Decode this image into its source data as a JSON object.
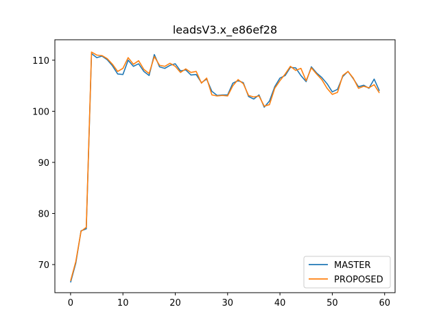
{
  "chart_data": {
    "type": "line",
    "title": "leadsV3.x_e86ef28",
    "xlabel": "",
    "ylabel": "",
    "xlim": [
      -3,
      62
    ],
    "ylim": [
      64.5,
      114.0
    ],
    "xticks": [
      0,
      10,
      20,
      30,
      40,
      50,
      60
    ],
    "yticks": [
      70,
      80,
      90,
      100,
      110
    ],
    "grid": false,
    "legend_position": "lower-right",
    "x": [
      0,
      1,
      2,
      3,
      4,
      5,
      6,
      7,
      8,
      9,
      10,
      11,
      12,
      13,
      14,
      15,
      16,
      17,
      18,
      19,
      20,
      21,
      22,
      23,
      24,
      25,
      26,
      27,
      28,
      29,
      30,
      31,
      32,
      33,
      34,
      35,
      36,
      37,
      38,
      39,
      40,
      41,
      42,
      43,
      44,
      45,
      46,
      47,
      48,
      49,
      50,
      51,
      52,
      53,
      54,
      55,
      56,
      57,
      58,
      59
    ],
    "series": [
      {
        "name": "MASTER",
        "color": "#1f77b4",
        "values": [
          66.5,
          70.3,
          76.6,
          77.0,
          111.3,
          110.5,
          110.8,
          110.1,
          108.9,
          107.3,
          107.2,
          110.0,
          108.8,
          109.3,
          107.8,
          107.0,
          111.1,
          108.7,
          108.4,
          109.0,
          109.3,
          107.9,
          108.1,
          107.1,
          107.2,
          105.6,
          106.3,
          103.9,
          103.1,
          103.2,
          103.2,
          105.5,
          106.0,
          105.6,
          102.9,
          102.4,
          103.2,
          100.8,
          102.0,
          104.8,
          106.5,
          107.0,
          108.6,
          108.5,
          107.0,
          105.8,
          108.7,
          107.5,
          106.6,
          105.4,
          103.8,
          104.3,
          106.8,
          107.8,
          106.4,
          104.8,
          105.1,
          104.5,
          106.3,
          104.0
        ]
      },
      {
        "name": "PROPOSED",
        "color": "#ff7f0e",
        "values": [
          66.8,
          70.6,
          76.5,
          77.3,
          111.6,
          111.0,
          110.9,
          110.3,
          109.2,
          107.8,
          108.4,
          110.5,
          109.2,
          109.9,
          108.2,
          107.4,
          110.7,
          109.0,
          108.8,
          109.4,
          108.8,
          107.6,
          108.3,
          107.6,
          107.8,
          105.5,
          106.5,
          103.2,
          103.0,
          103.1,
          103.0,
          105.0,
          106.2,
          105.4,
          103.1,
          102.8,
          103.0,
          101.0,
          101.3,
          104.5,
          106.0,
          107.3,
          108.8,
          108.0,
          108.4,
          106.0,
          108.5,
          107.3,
          106.2,
          104.5,
          103.3,
          103.7,
          107.0,
          107.8,
          106.5,
          104.5,
          104.9,
          104.6,
          105.2,
          103.6
        ]
      }
    ]
  }
}
